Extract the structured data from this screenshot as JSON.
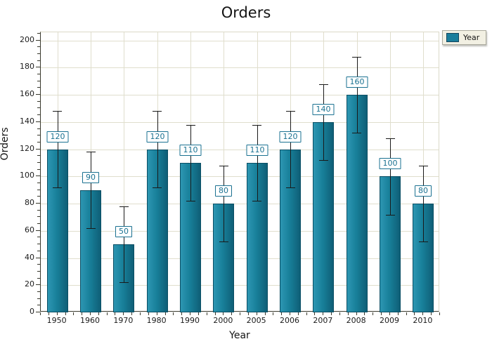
{
  "chart_data": {
    "type": "bar",
    "title": "Orders",
    "xlabel": "Year",
    "ylabel": "Orders",
    "categories": [
      "1950",
      "1960",
      "1970",
      "1980",
      "1990",
      "2000",
      "2005",
      "2006",
      "2007",
      "2008",
      "2009",
      "2010"
    ],
    "values": [
      120,
      90,
      50,
      120,
      110,
      80,
      110,
      120,
      140,
      160,
      100,
      80
    ],
    "bar_labels": [
      "120",
      "90",
      "50",
      "120",
      "110",
      "80",
      "110",
      "120",
      "140",
      "160",
      "100",
      "80"
    ],
    "error_bar": 28,
    "ylim": [
      0,
      206
    ],
    "y_major_tick_step": 20,
    "y_minor_tick_step": 5,
    "x_minor_ticks_per_category": 4,
    "grid": {
      "horizontal": "major",
      "vertical": "category-centers"
    },
    "legend_position": "top-right"
  },
  "legend": {
    "items": [
      {
        "label": "Year",
        "swatch_color": "#1B7E9C"
      }
    ]
  },
  "colors": {
    "bar_gradient_left": "#2D96B2",
    "bar_gradient_right": "#0F5F77",
    "bar_border": "#0A4E64",
    "value_label_border": "#1A7191",
    "value_label_text": "#1A7191",
    "gridline": "#E0DECD",
    "axis_line": "#3A3A2E",
    "error_bar": "#1A1A1A",
    "legend_background": "#F2F0E3",
    "legend_border": "#ABAA9D"
  }
}
